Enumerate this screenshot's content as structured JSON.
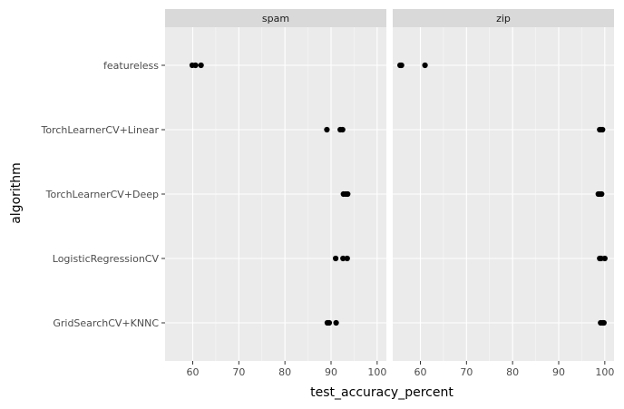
{
  "chart_data": {
    "type": "scatter",
    "xlabel": "test_accuracy_percent",
    "ylabel": "algorithm",
    "xlim": [
      54,
      102
    ],
    "x_ticks": [
      60,
      70,
      80,
      90,
      100
    ],
    "x_tick_labels": [
      "60",
      "70",
      "80",
      "90",
      "100"
    ],
    "categories": [
      "featureless",
      "TorchLearnerCV+Linear",
      "TorchLearnerCV+Deep",
      "LogisticRegressionCV",
      "GridSearchCV+KNNC"
    ],
    "grid": true,
    "legend": "none",
    "facets": [
      {
        "name": "spam",
        "points": [
          {
            "algorithm": "featureless",
            "x": 59.9
          },
          {
            "algorithm": "featureless",
            "x": 60.6
          },
          {
            "algorithm": "featureless",
            "x": 61.8
          },
          {
            "algorithm": "TorchLearnerCV+Linear",
            "x": 89.1
          },
          {
            "algorithm": "TorchLearnerCV+Linear",
            "x": 92.0
          },
          {
            "algorithm": "TorchLearnerCV+Linear",
            "x": 92.5
          },
          {
            "algorithm": "TorchLearnerCV+Deep",
            "x": 92.7
          },
          {
            "algorithm": "TorchLearnerCV+Deep",
            "x": 93.2
          },
          {
            "algorithm": "TorchLearnerCV+Deep",
            "x": 93.6
          },
          {
            "algorithm": "LogisticRegressionCV",
            "x": 91.0
          },
          {
            "algorithm": "LogisticRegressionCV",
            "x": 92.6
          },
          {
            "algorithm": "LogisticRegressionCV",
            "x": 93.5
          },
          {
            "algorithm": "GridSearchCV+KNNC",
            "x": 89.2
          },
          {
            "algorithm": "GridSearchCV+KNNC",
            "x": 89.6
          },
          {
            "algorithm": "GridSearchCV+KNNC",
            "x": 91.1
          }
        ]
      },
      {
        "name": "zip",
        "points": [
          {
            "algorithm": "featureless",
            "x": 55.6
          },
          {
            "algorithm": "featureless",
            "x": 55.9
          },
          {
            "algorithm": "featureless",
            "x": 61.0
          },
          {
            "algorithm": "TorchLearnerCV+Linear",
            "x": 98.9
          },
          {
            "algorithm": "TorchLearnerCV+Linear",
            "x": 99.2
          },
          {
            "algorithm": "TorchLearnerCV+Linear",
            "x": 99.5
          },
          {
            "algorithm": "TorchLearnerCV+Deep",
            "x": 98.6
          },
          {
            "algorithm": "TorchLearnerCV+Deep",
            "x": 98.9
          },
          {
            "algorithm": "TorchLearnerCV+Deep",
            "x": 99.3
          },
          {
            "algorithm": "LogisticRegressionCV",
            "x": 98.9
          },
          {
            "algorithm": "LogisticRegressionCV",
            "x": 99.2
          },
          {
            "algorithm": "LogisticRegressionCV",
            "x": 100.0
          },
          {
            "algorithm": "GridSearchCV+KNNC",
            "x": 99.1
          },
          {
            "algorithm": "GridSearchCV+KNNC",
            "x": 99.5
          },
          {
            "algorithm": "GridSearchCV+KNNC",
            "x": 99.8
          }
        ]
      }
    ]
  },
  "colors": {
    "panel_background": "#ebebeb",
    "grid_major": "#ffffff",
    "strip_background": "#d9d9d9",
    "point": "#000000",
    "tick": "#333333"
  }
}
